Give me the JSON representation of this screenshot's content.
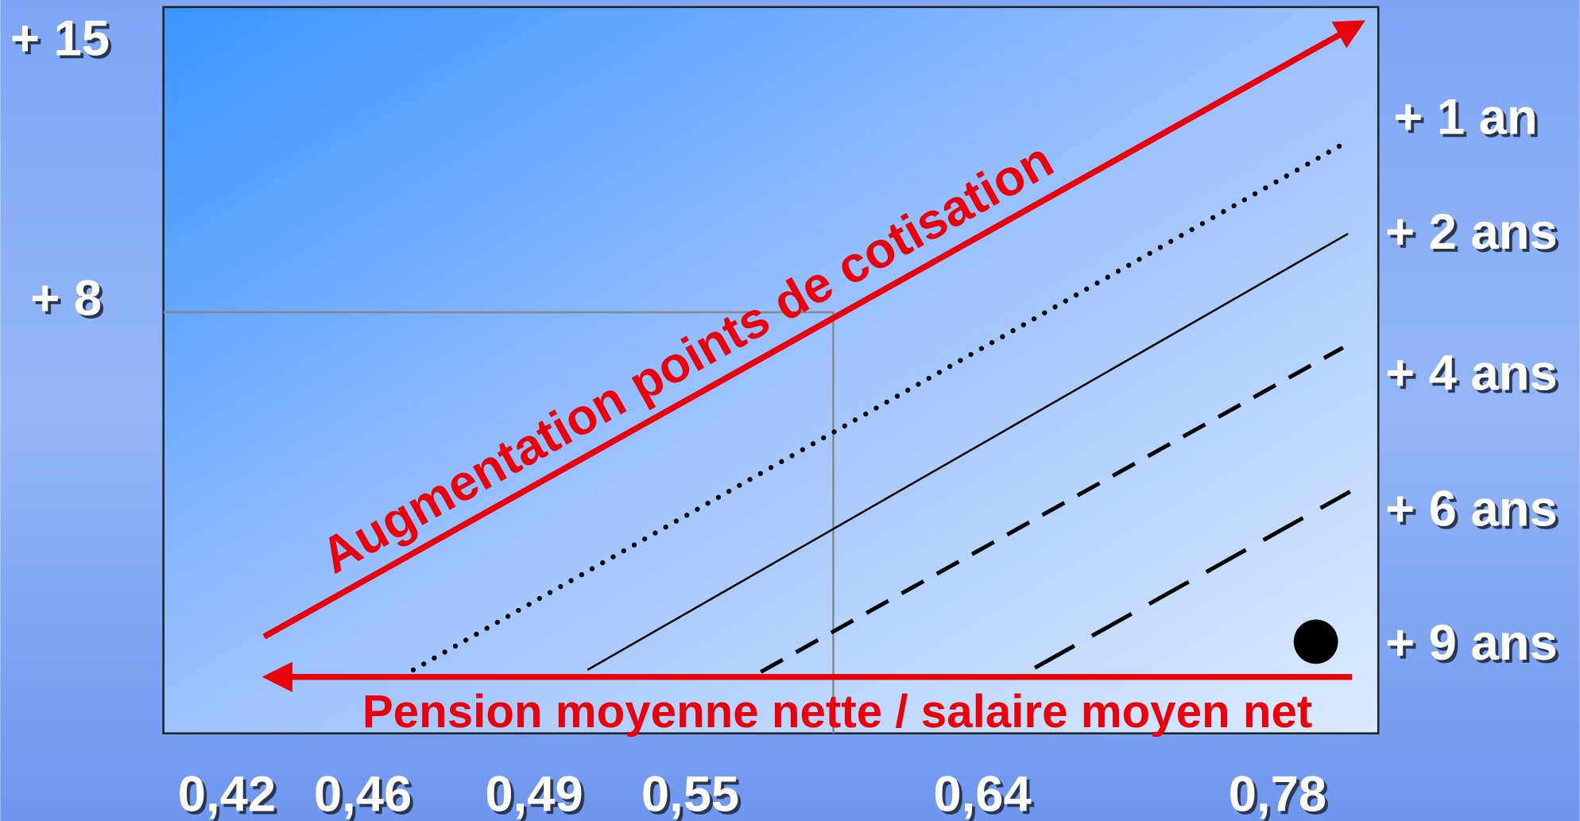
{
  "y_labels": [
    "+ 15",
    "+ 8"
  ],
  "x_labels": [
    "0,42",
    "0,46",
    "0,49",
    "0,55",
    "0,64",
    "0,78"
  ],
  "right_labels": [
    "+ 1 an",
    "+ 2 ans",
    "+ 4 ans",
    "+ 6 ans",
    "+ 9 ans"
  ],
  "diagonal_arrow_label": "Augmentation points de cotisation",
  "horizontal_arrow_label": "Pension moyenne nette / salaire moyen net"
}
